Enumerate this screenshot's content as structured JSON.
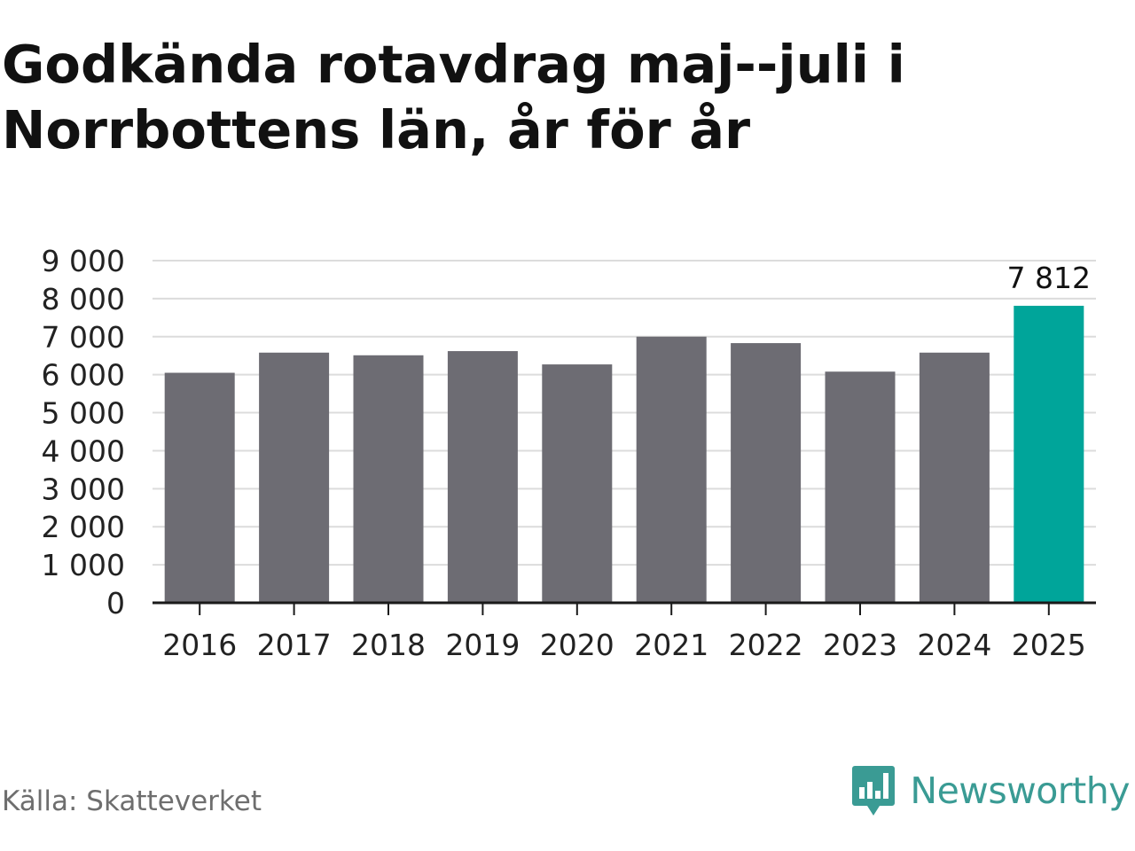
{
  "title": "Godkända rotavdrag maj--juli i Norrbottens län, år för år",
  "source": "Källa: Skatteverket",
  "brand": {
    "name": "Newsworthy",
    "icon": "newsworthy-logo-icon"
  },
  "colors": {
    "bar": "#6d6c73",
    "highlight": "#00a59a",
    "grid": "#dcdcdc",
    "axis": "#1a1a1a",
    "text": "#1a1a1a",
    "brand": "#3a9b94"
  },
  "chart_data": {
    "type": "bar",
    "title": "Godkända rotavdrag maj--juli i Norrbottens län, år för år",
    "xlabel": "",
    "ylabel": "",
    "categories": [
      "2016",
      "2017",
      "2018",
      "2019",
      "2020",
      "2021",
      "2022",
      "2023",
      "2024",
      "2025"
    ],
    "values": [
      6050,
      6580,
      6510,
      6620,
      6270,
      7000,
      6830,
      6080,
      6580,
      7812
    ],
    "highlight_index": 9,
    "data_labels": [
      {
        "category": "2025",
        "text": "7 812"
      }
    ],
    "ylim": [
      0,
      9000
    ],
    "yticks": [
      0,
      1000,
      2000,
      3000,
      4000,
      5000,
      6000,
      7000,
      8000,
      9000
    ],
    "ytick_labels": [
      "0",
      "1 000",
      "2 000",
      "3 000",
      "4 000",
      "5 000",
      "6 000",
      "7 000",
      "8 000",
      "9 000"
    ],
    "grid": true,
    "legend": "none"
  }
}
